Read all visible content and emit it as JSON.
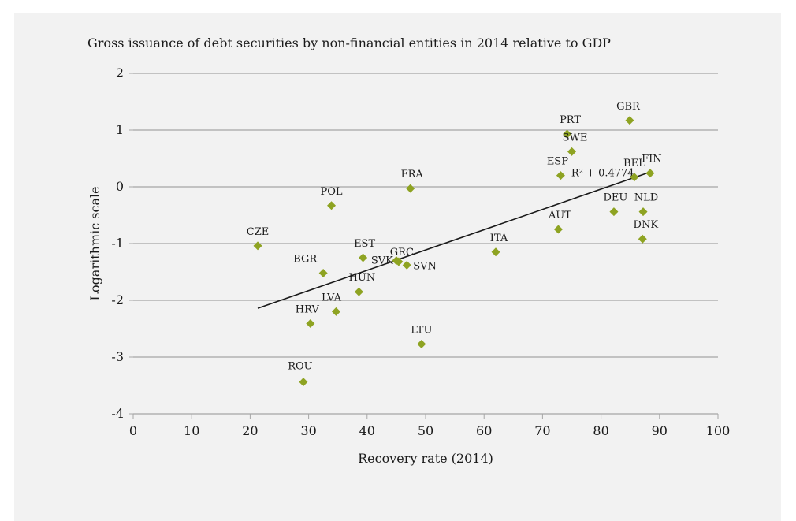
{
  "chart_data": {
    "type": "scatter",
    "title": "Gross issuance of debt securities by non-financial entities in 2014 relative to GDP",
    "xlabel": "Recovery rate (2014)",
    "ylabel": "Logarithmic scale",
    "xlim": [
      0,
      100
    ],
    "ylim": [
      -4,
      2
    ],
    "x_ticks": [
      "0",
      "10",
      "20",
      "30",
      "40",
      "50",
      "60",
      "70",
      "80",
      "90",
      "100"
    ],
    "y_ticks": [
      "2",
      "1",
      "0",
      "-1",
      "-2",
      "-3",
      "-4"
    ],
    "grid": "horizontal",
    "marker_color": "#8ea322",
    "points": [
      {
        "label": "CZE",
        "x": 21.3,
        "y": -1.04
      },
      {
        "label": "POL",
        "x": 33.9,
        "y": -0.33
      },
      {
        "label": "BGR",
        "x": 32.5,
        "y": -1.52
      },
      {
        "label": "EST",
        "x": 39.3,
        "y": -1.25
      },
      {
        "label": "SVK",
        "x": 45.0,
        "y": -1.3
      },
      {
        "label": "GRC",
        "x": 45.4,
        "y": -1.32
      },
      {
        "label": "SVN",
        "x": 46.8,
        "y": -1.38
      },
      {
        "label": "HUN",
        "x": 38.6,
        "y": -1.85
      },
      {
        "label": "LVA",
        "x": 34.7,
        "y": -2.2
      },
      {
        "label": "HRV",
        "x": 30.3,
        "y": -2.41
      },
      {
        "label": "ROU",
        "x": 29.1,
        "y": -3.44
      },
      {
        "label": "LTU",
        "x": 49.3,
        "y": -2.77
      },
      {
        "label": "FRA",
        "x": 47.4,
        "y": -0.03
      },
      {
        "label": "ITA",
        "x": 62.0,
        "y": -1.15
      },
      {
        "label": "AUT",
        "x": 72.7,
        "y": -0.75
      },
      {
        "label": "ESP",
        "x": 73.1,
        "y": 0.2
      },
      {
        "label": "PRT",
        "x": 74.2,
        "y": 0.93
      },
      {
        "label": "SWE",
        "x": 75.0,
        "y": 0.62
      },
      {
        "label": "GBR",
        "x": 84.9,
        "y": 1.17
      },
      {
        "label": "BEL",
        "x": 85.7,
        "y": 0.17
      },
      {
        "label": "FIN",
        "x": 88.4,
        "y": 0.24
      },
      {
        "label": "DEU",
        "x": 82.2,
        "y": -0.44
      },
      {
        "label": "NLD",
        "x": 87.2,
        "y": -0.44
      },
      {
        "label": "DNK",
        "x": 87.1,
        "y": -0.92
      }
    ],
    "trendline": {
      "x": [
        21.3,
        88.4
      ],
      "y": [
        -2.14,
        0.26
      ],
      "annotation": "R² + 0.4774"
    }
  }
}
